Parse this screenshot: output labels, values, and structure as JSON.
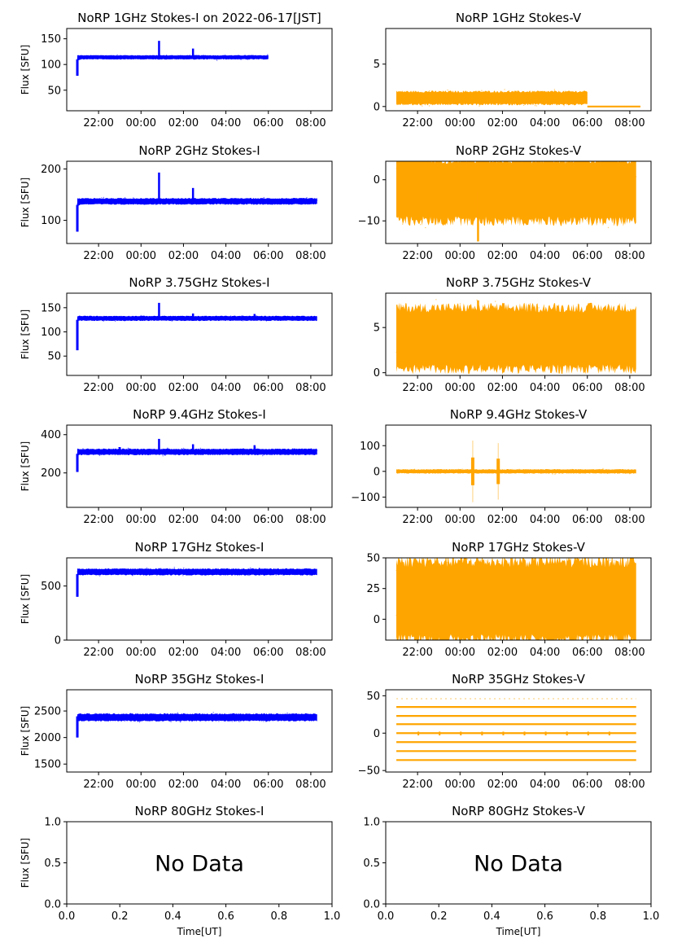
{
  "figure": {
    "date_title": "NoRP 1GHz Stokes-I on 2022-06-17[JST]"
  },
  "colors": {
    "stokes_i": "#0000ff",
    "stokes_v": "#ffa500",
    "axis": "#000000"
  },
  "chart_data": [
    {
      "id": "p1i",
      "type": "scatter",
      "title": "NoRP 1GHz Stokes-I on 2022-06-17[JST]",
      "series": "stokes_i",
      "ylabel": "Flux [SFU]",
      "xlabel": "",
      "ylim": [
        10,
        170
      ],
      "yticks": [
        50,
        100,
        150
      ],
      "ytick_labels": [
        "50",
        "100",
        "150"
      ],
      "xtick_labels": [
        "22:00",
        "00:00",
        "02:00",
        "04:00",
        "06:00",
        "08:00"
      ],
      "x_hours": [
        21,
        30
      ],
      "data_end_hour": 30,
      "baseline": 114,
      "noise": 2,
      "start": {
        "from": 78,
        "to": 110
      },
      "spikes": [
        {
          "at": 24.85,
          "peak": 146
        },
        {
          "at": 26.45,
          "peak": 131
        }
      ],
      "has_data": true
    },
    {
      "id": "p1v",
      "type": "scatter",
      "title": "NoRP 1GHz Stokes-V",
      "series": "stokes_v",
      "ylabel": "",
      "xlabel": "",
      "ylim": [
        -0.5,
        9.2
      ],
      "yticks": [
        0,
        5
      ],
      "ytick_labels": [
        "0",
        "5"
      ],
      "xtick_labels": [
        "22:00",
        "00:00",
        "02:00",
        "04:00",
        "06:00",
        "08:00"
      ],
      "x_hours": [
        21,
        30
      ],
      "data_end_hour": 30,
      "baseline": 1.0,
      "noise": 0.4,
      "flat_after": {
        "hour": 30,
        "value": 0
      },
      "flat_to_hour": 32.5,
      "spikes": [],
      "has_data": true
    },
    {
      "id": "p2i",
      "type": "scatter",
      "title": "NoRP 2GHz Stokes-I",
      "series": "stokes_i",
      "ylabel": "Flux [SFU]",
      "xlabel": "",
      "ylim": [
        55,
        215
      ],
      "yticks": [
        100,
        200
      ],
      "ytick_labels": [
        "100",
        "200"
      ],
      "xtick_labels": [
        "22:00",
        "00:00",
        "02:00",
        "04:00",
        "06:00",
        "08:00"
      ],
      "x_hours": [
        21,
        32.3
      ],
      "data_end_hour": 32.3,
      "baseline": 137,
      "noise": 3,
      "start": {
        "from": 78,
        "to": 130
      },
      "spikes": [
        {
          "at": 24.85,
          "peak": 193
        },
        {
          "at": 26.45,
          "peak": 163
        }
      ],
      "has_data": true
    },
    {
      "id": "p2v",
      "type": "scatter",
      "title": "NoRP 2GHz Stokes-V",
      "series": "stokes_v",
      "ylabel": "",
      "xlabel": "",
      "ylim": [
        -15.5,
        4.5
      ],
      "yticks": [
        -10,
        0
      ],
      "ytick_labels": [
        "−10",
        "0"
      ],
      "xtick_labels": [
        "22:00",
        "00:00",
        "02:00",
        "04:00",
        "06:00",
        "08:00"
      ],
      "x_hours": [
        21,
        32.3
      ],
      "data_end_hour": 32.3,
      "baseline": -2.5,
      "noise": 4,
      "spikes": [
        {
          "at": 24.85,
          "peak": -15
        }
      ],
      "has_data": true
    },
    {
      "id": "p3i",
      "type": "scatter",
      "title": "NoRP 3.75GHz Stokes-I",
      "series": "stokes_i",
      "ylabel": "Flux [SFU]",
      "xlabel": "",
      "ylim": [
        10,
        180
      ],
      "yticks": [
        50,
        100,
        150
      ],
      "ytick_labels": [
        "50",
        "100",
        "150"
      ],
      "xtick_labels": [
        "22:00",
        "00:00",
        "02:00",
        "04:00",
        "06:00",
        "08:00"
      ],
      "x_hours": [
        21,
        32.3
      ],
      "data_end_hour": 32.3,
      "baseline": 128,
      "noise": 2.5,
      "start": {
        "from": 62,
        "to": 125
      },
      "spikes": [
        {
          "at": 24.85,
          "peak": 160
        },
        {
          "at": 26.45,
          "peak": 138
        },
        {
          "at": 29.35,
          "peak": 137
        }
      ],
      "has_data": true
    },
    {
      "id": "p3v",
      "type": "scatter",
      "title": "NoRP 3.75GHz Stokes-V",
      "series": "stokes_v",
      "ylabel": "",
      "xlabel": "",
      "ylim": [
        -0.3,
        8.8
      ],
      "yticks": [
        0,
        5
      ],
      "ytick_labels": [
        "0",
        "5"
      ],
      "xtick_labels": [
        "22:00",
        "00:00",
        "02:00",
        "04:00",
        "06:00",
        "08:00"
      ],
      "x_hours": [
        21,
        32.3
      ],
      "data_end_hour": 32.3,
      "baseline": 3.8,
      "noise": 1.8,
      "spikes": [
        {
          "at": 24.85,
          "peak": 8
        }
      ],
      "has_data": true
    },
    {
      "id": "p4i",
      "type": "scatter",
      "title": "NoRP 9.4GHz Stokes-I",
      "series": "stokes_i",
      "ylabel": "Flux [SFU]",
      "xlabel": "",
      "ylim": [
        20,
        450
      ],
      "yticks": [
        200,
        400
      ],
      "ytick_labels": [
        "200",
        "400"
      ],
      "xtick_labels": [
        "22:00",
        "00:00",
        "02:00",
        "04:00",
        "06:00",
        "08:00"
      ],
      "x_hours": [
        21,
        32.3
      ],
      "data_end_hour": 32.3,
      "baseline": 310,
      "noise": 8,
      "start": {
        "from": 205,
        "to": 300
      },
      "spikes": [
        {
          "at": 24.85,
          "peak": 378
        },
        {
          "at": 26.45,
          "peak": 350
        },
        {
          "at": 29.35,
          "peak": 345
        },
        {
          "at": 23.0,
          "peak": 335
        }
      ],
      "has_data": true
    },
    {
      "id": "p4v",
      "type": "scatter",
      "title": "NoRP 9.4GHz Stokes-V",
      "series": "stokes_v",
      "ylabel": "",
      "xlabel": "",
      "ylim": [
        -140,
        180
      ],
      "yticks": [
        -100,
        0,
        100
      ],
      "ytick_labels": [
        "−100",
        "0",
        "100"
      ],
      "xtick_labels": [
        "22:00",
        "00:00",
        "02:00",
        "04:00",
        "06:00",
        "08:00"
      ],
      "x_hours": [
        21,
        32.3
      ],
      "data_end_hour": 32.3,
      "baseline": 0,
      "noise": 4,
      "bursts": [
        {
          "at": 24.6,
          "amp": 120
        },
        {
          "at": 25.8,
          "amp": 110
        }
      ],
      "spikes": [],
      "has_data": true
    },
    {
      "id": "p5i",
      "type": "scatter",
      "title": "NoRP 17GHz Stokes-I",
      "series": "stokes_i",
      "ylabel": "Flux [SFU]",
      "xlabel": "",
      "ylim": [
        0,
        760
      ],
      "yticks": [
        0,
        500
      ],
      "ytick_labels": [
        "0",
        "500"
      ],
      "xtick_labels": [
        "22:00",
        "00:00",
        "02:00",
        "04:00",
        "06:00",
        "08:00"
      ],
      "x_hours": [
        21,
        32.3
      ],
      "data_end_hour": 32.3,
      "baseline": 630,
      "noise": 15,
      "start": {
        "from": 400,
        "to": 610
      },
      "spikes": [],
      "has_data": true
    },
    {
      "id": "p5v",
      "type": "scatter",
      "title": "NoRP 17GHz Stokes-V",
      "series": "stokes_v",
      "ylabel": "",
      "xlabel": "",
      "ylim": [
        -17,
        50
      ],
      "yticks": [
        0,
        25,
        50
      ],
      "ytick_labels": [
        "0",
        "25",
        "50"
      ],
      "xtick_labels": [
        "22:00",
        "00:00",
        "02:00",
        "04:00",
        "06:00",
        "08:00"
      ],
      "x_hours": [
        21,
        32.3
      ],
      "data_end_hour": 32.3,
      "baseline": 15,
      "noise": 17,
      "spikes": [],
      "has_data": true
    },
    {
      "id": "p6i",
      "type": "scatter",
      "title": "NoRP 35GHz Stokes-I",
      "series": "stokes_i",
      "ylabel": "Flux [SFU]",
      "xlabel": "",
      "ylim": [
        1350,
        2900
      ],
      "yticks": [
        1500,
        2000,
        2500
      ],
      "ytick_labels": [
        "1500",
        "2000",
        "2500"
      ],
      "xtick_labels": [
        "22:00",
        "00:00",
        "02:00",
        "04:00",
        "06:00",
        "08:00"
      ],
      "x_hours": [
        21,
        32.3
      ],
      "data_end_hour": 32.3,
      "baseline": 2380,
      "noise": 35,
      "start": {
        "from": 2000,
        "to": 2400
      },
      "spikes": [],
      "has_data": true
    },
    {
      "id": "p6v",
      "type": "scatter",
      "title": "NoRP 35GHz Stokes-V",
      "series": "stokes_v",
      "ylabel": "",
      "xlabel": "",
      "ylim": [
        -52,
        58
      ],
      "yticks": [
        -50,
        0,
        50
      ],
      "ytick_labels": [
        "−50",
        "0",
        "50"
      ],
      "xtick_labels": [
        "22:00",
        "00:00",
        "02:00",
        "04:00",
        "06:00",
        "08:00"
      ],
      "x_hours": [
        21,
        32.3
      ],
      "data_end_hour": 32.3,
      "levels": [
        46,
        35,
        23,
        12,
        0,
        -12,
        -24,
        -36
      ],
      "spikes": [],
      "has_data": true
    },
    {
      "id": "p7i",
      "type": "empty",
      "title": "NoRP 80GHz Stokes-I",
      "series": "stokes_i",
      "ylabel": "Flux [SFU]",
      "xlabel": "Time[UT]",
      "ylim": [
        0,
        1
      ],
      "yticks": [
        0,
        0.5,
        1
      ],
      "ytick_labels": [
        "0.0",
        "0.5",
        "1.0"
      ],
      "xtick_labels": [
        "0.0",
        "0.2",
        "0.4",
        "0.6",
        "0.8",
        "1.0"
      ],
      "has_data": false,
      "message": "No Data"
    },
    {
      "id": "p7v",
      "type": "empty",
      "title": "NoRP 80GHz Stokes-V",
      "series": "stokes_v",
      "ylabel": "",
      "xlabel": "Time[UT]",
      "ylim": [
        0,
        1
      ],
      "yticks": [
        0,
        0.5,
        1
      ],
      "ytick_labels": [
        "0.0",
        "0.5",
        "1.0"
      ],
      "xtick_labels": [
        "0.0",
        "0.2",
        "0.4",
        "0.6",
        "0.8",
        "1.0"
      ],
      "has_data": false,
      "message": "No Data"
    }
  ]
}
